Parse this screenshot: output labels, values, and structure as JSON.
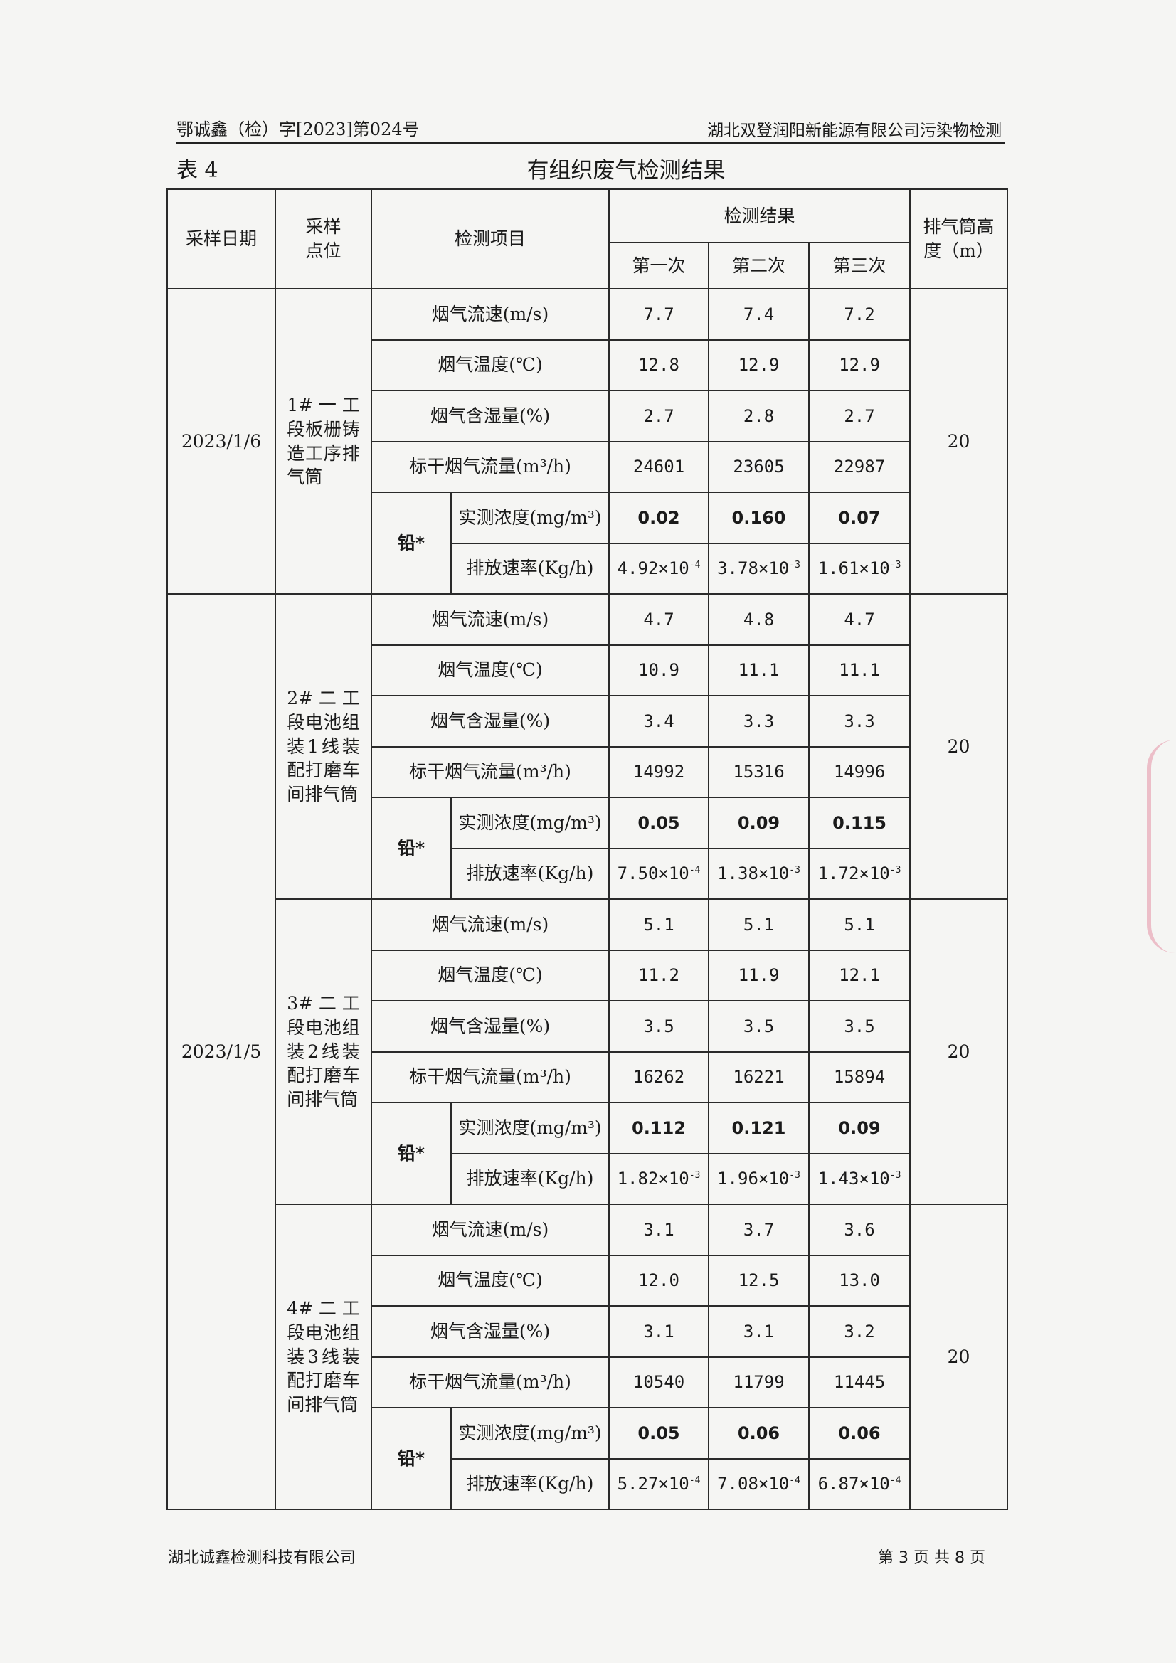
{
  "header": {
    "doc_no": "鄂诚鑫（检）字[2023]第024号",
    "client": "湖北双登润阳新能源有限公司污染物检测"
  },
  "table_no": "表 4",
  "table_title": "有组织废气检测结果",
  "columns": {
    "date": "采样日期",
    "point": "采样点位",
    "item": "检测项目",
    "results": "检测结果",
    "run1": "第一次",
    "run2": "第二次",
    "run3": "第三次",
    "height": "排气筒高度（m）"
  },
  "lead_label": "铅*",
  "row_labels": [
    "烟气流速(m/s)",
    "烟气温度(℃)",
    "烟气含湿量(%)",
    "标干烟气流量(m³/h)",
    "实测浓度(mg/m³)",
    "排放速率(Kg/h)"
  ],
  "groups": [
    {
      "date": "2023/1/6",
      "point": "1#一工段板栅铸造工序排气筒",
      "height": "20",
      "values": [
        [
          "7.7",
          "7.4",
          "7.2"
        ],
        [
          "12.8",
          "12.9",
          "12.9"
        ],
        [
          "2.7",
          "2.8",
          "2.7"
        ],
        [
          "24601",
          "23605",
          "22987"
        ],
        [
          "0.02",
          "0.160",
          "0.07"
        ],
        [
          "4.92×10^-4",
          "3.78×10^-3",
          "1.61×10^-3"
        ]
      ]
    },
    {
      "date": "2023/1/5",
      "point": "2#二工段电池组装1线装配打磨车间排气筒",
      "height": "20",
      "values": [
        [
          "4.7",
          "4.8",
          "4.7"
        ],
        [
          "10.9",
          "11.1",
          "11.1"
        ],
        [
          "3.4",
          "3.3",
          "3.3"
        ],
        [
          "14992",
          "15316",
          "14996"
        ],
        [
          "0.05",
          "0.09",
          "0.115"
        ],
        [
          "7.50×10^-4",
          "1.38×10^-3",
          "1.72×10^-3"
        ]
      ]
    },
    {
      "point": "3#二工段电池组装2线装配打磨车间排气筒",
      "height": "20",
      "values": [
        [
          "5.1",
          "5.1",
          "5.1"
        ],
        [
          "11.2",
          "11.9",
          "12.1"
        ],
        [
          "3.5",
          "3.5",
          "3.5"
        ],
        [
          "16262",
          "16221",
          "15894"
        ],
        [
          "0.112",
          "0.121",
          "0.09"
        ],
        [
          "1.82×10^-3",
          "1.96×10^-3",
          "1.43×10^-3"
        ]
      ]
    },
    {
      "point": "4#二工段电池组装3线装配打磨车间排气筒",
      "height": "20",
      "values": [
        [
          "3.1",
          "3.7",
          "3.6"
        ],
        [
          "12.0",
          "12.5",
          "13.0"
        ],
        [
          "3.1",
          "3.1",
          "3.2"
        ],
        [
          "10540",
          "11799",
          "11445"
        ],
        [
          "0.05",
          "0.06",
          "0.06"
        ],
        [
          "5.27×10^-4",
          "7.08×10^-4",
          "6.87×10^-4"
        ]
      ]
    }
  ],
  "footer": {
    "company": "湖北诚鑫检测科技有限公司",
    "page": "第 3 页 共 8 页"
  }
}
